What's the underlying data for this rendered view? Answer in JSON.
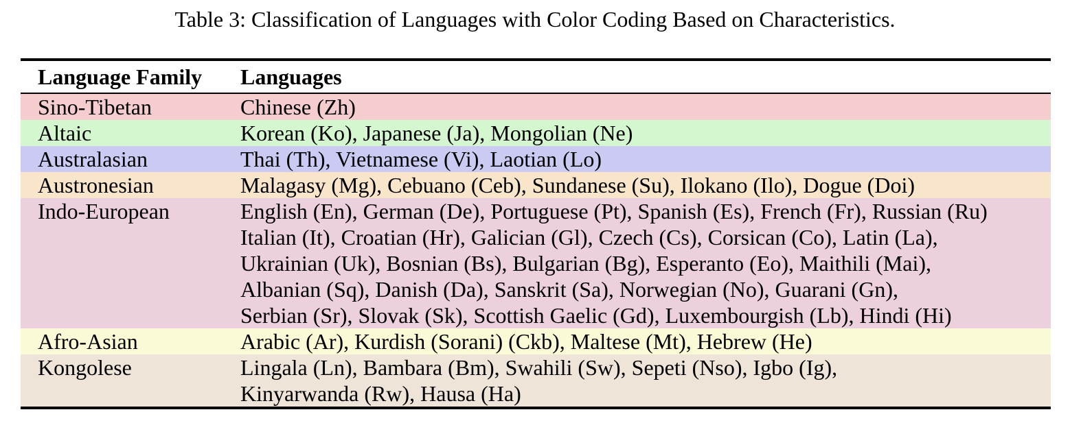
{
  "page": {
    "caption": "Table 3: Classification of Languages with Color Coding Based on Characteristics."
  },
  "table": {
    "headers": [
      "Language Family",
      "Languages"
    ],
    "rows": [
      {
        "family": "Sino-Tibetan",
        "row_color": "#f6cdce",
        "language_lines": [
          "Chinese (Zh)"
        ]
      },
      {
        "family": "Altaic",
        "row_color": "#d4f7d0",
        "language_lines": [
          "Korean (Ko), Japanese (Ja), Mongolian (Ne)"
        ]
      },
      {
        "family": "Australasian",
        "row_color": "#cacaf2",
        "language_lines": [
          "Thai (Th), Vietnamese (Vi), Laotian (Lo)"
        ]
      },
      {
        "family": "Austronesian",
        "row_color": "#f8e5ca",
        "language_lines": [
          "Malagasy (Mg), Cebuano (Ceb), Sundanese (Su), Ilokano (Ilo), Dogue (Doi)"
        ]
      },
      {
        "family": "Indo-European",
        "row_color": "#ecd0dd",
        "language_lines": [
          "English (En), German (De), Portuguese (Pt), Spanish (Es), French (Fr), Russian (Ru)",
          "Italian (It), Croatian (Hr), Galician (Gl), Czech (Cs), Corsican (Co), Latin (La),",
          "Ukrainian (Uk), Bosnian (Bs), Bulgarian (Bg), Esperanto (Eo), Maithili (Mai),",
          "Albanian (Sq), Danish (Da), Sanskrit (Sa), Norwegian (No), Guarani (Gn),",
          "Serbian (Sr), Slovak (Sk), Scottish Gaelic (Gd), Luxembourgish (Lb), Hindi (Hi)"
        ]
      },
      {
        "family": "Afro-Asian",
        "row_color": "#fafad7",
        "language_lines": [
          "Arabic (Ar), Kurdish (Sorani) (Ckb), Maltese (Mt), Hebrew (He)"
        ]
      },
      {
        "family": "Kongolese",
        "row_color": "#eee4d8",
        "language_lines": [
          "Lingala (Ln), Bambara (Bm), Swahili (Sw), Sepeti (Nso), Igbo (Ig),",
          "Kinyarwanda (Rw), Hausa (Ha)"
        ]
      }
    ]
  }
}
